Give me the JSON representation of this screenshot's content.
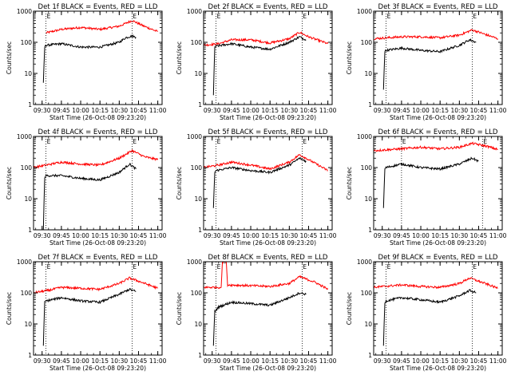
{
  "chart_data": [
    {
      "type": "line",
      "title": "Det 1f BLACK = Events, RED = LLD",
      "xlabel": "Start Time (26-Oct-08 09:23:20)",
      "ylabel": "Counts/sec",
      "x_ticks": [
        "09:30",
        "09:45",
        "10:00",
        "10:15",
        "10:30",
        "10:45",
        "11:00"
      ],
      "y_ticks": [
        "1",
        "10",
        "100",
        "1000"
      ],
      "y_scale": "log",
      "ylim": [
        1,
        1000
      ],
      "xlim": [
        "09:23:20",
        "11:03:20"
      ],
      "markers": [
        "E",
        "E"
      ],
      "vlines": [
        "09:33",
        "10:40"
      ],
      "series": [
        {
          "color": "#ff0000",
          "points": [
            [
              "09:33",
              200
            ],
            [
              "09:45",
              260
            ],
            [
              "10:00",
              300
            ],
            [
              "10:15",
              260
            ],
            [
              "10:30",
              330
            ],
            [
              "10:40",
              500
            ],
            [
              "10:50",
              320
            ],
            [
              "11:00",
              220
            ]
          ]
        },
        {
          "color": "#000000",
          "points": [
            [
              "09:31",
              5
            ],
            [
              "09:32",
              70
            ],
            [
              "09:33",
              80
            ],
            [
              "09:45",
              90
            ],
            [
              "10:00",
              70
            ],
            [
              "10:15",
              70
            ],
            [
              "10:30",
              100
            ],
            [
              "10:35",
              140
            ],
            [
              "10:40",
              160
            ],
            [
              "10:43",
              145
            ]
          ]
        }
      ]
    },
    {
      "type": "line",
      "title": "Det 2f BLACK = Events, RED = LLD",
      "xlabel": "Start Time (26-Oct-08 09:23:20)",
      "ylabel": "Counts/sec",
      "x_ticks": [
        "09:30",
        "09:45",
        "10:00",
        "10:15",
        "10:30",
        "10:45",
        "11:00"
      ],
      "y_ticks": [
        "1",
        "10",
        "100",
        "1000"
      ],
      "y_scale": "log",
      "ylim": [
        1,
        1000
      ],
      "xlim": [
        "09:23:20",
        "11:03:20"
      ],
      "markers": [
        "E",
        "E"
      ],
      "vlines": [
        "09:33",
        "10:40"
      ],
      "series": [
        {
          "color": "#ff0000",
          "points": [
            [
              "09:23",
              80
            ],
            [
              "09:35",
              90
            ],
            [
              "09:45",
              120
            ],
            [
              "10:00",
              120
            ],
            [
              "10:15",
              95
            ],
            [
              "10:30",
              130
            ],
            [
              "10:38",
              210
            ],
            [
              "10:45",
              150
            ],
            [
              "11:00",
              90
            ]
          ]
        },
        {
          "color": "#000000",
          "points": [
            [
              "09:31",
              2
            ],
            [
              "09:32",
              70
            ],
            [
              "09:33",
              75
            ],
            [
              "09:45",
              90
            ],
            [
              "10:00",
              70
            ],
            [
              "10:15",
              60
            ],
            [
              "10:30",
              100
            ],
            [
              "10:38",
              150
            ],
            [
              "10:43",
              120
            ]
          ]
        }
      ]
    },
    {
      "type": "line",
      "title": "Det 3f BLACK = Events, RED = LLD",
      "xlabel": "Start Time (26-Oct-08 09:23:20)",
      "ylabel": "Counts/sec",
      "x_ticks": [
        "09:30",
        "09:45",
        "10:00",
        "10:15",
        "10:30",
        "10:45",
        "11:00"
      ],
      "y_ticks": [
        "1",
        "10",
        "100",
        "1000"
      ],
      "y_scale": "log",
      "ylim": [
        1,
        1000
      ],
      "xlim": [
        "09:23:20",
        "11:03:20"
      ],
      "markers": [
        "E",
        "E"
      ],
      "vlines": [
        "09:33",
        "10:40"
      ],
      "series": [
        {
          "color": "#ff0000",
          "points": [
            [
              "09:23",
              130
            ],
            [
              "09:45",
              150
            ],
            [
              "10:00",
              150
            ],
            [
              "10:15",
              140
            ],
            [
              "10:30",
              170
            ],
            [
              "10:40",
              250
            ],
            [
              "10:50",
              180
            ],
            [
              "11:00",
              130
            ]
          ]
        },
        {
          "color": "#000000",
          "points": [
            [
              "09:31",
              3
            ],
            [
              "09:32",
              50
            ],
            [
              "09:33",
              55
            ],
            [
              "09:45",
              65
            ],
            [
              "10:00",
              55
            ],
            [
              "10:15",
              50
            ],
            [
              "10:30",
              80
            ],
            [
              "10:38",
              120
            ],
            [
              "10:43",
              100
            ]
          ]
        }
      ]
    },
    {
      "type": "line",
      "title": "Det 4f BLACK = Events, RED = LLD",
      "xlabel": "Start Time (26-Oct-08 09:23:20)",
      "ylabel": "Counts/sec",
      "x_ticks": [
        "09:30",
        "09:45",
        "10:00",
        "10:15",
        "10:30",
        "10:45",
        "11:00"
      ],
      "y_ticks": [
        "1",
        "10",
        "100",
        "1000"
      ],
      "y_scale": "log",
      "ylim": [
        1,
        1000
      ],
      "xlim": [
        "09:23:20",
        "11:03:20"
      ],
      "markers": [
        "E",
        "E"
      ],
      "vlines": [
        "09:33",
        "10:40"
      ],
      "series": [
        {
          "color": "#ff0000",
          "points": [
            [
              "09:23",
              100
            ],
            [
              "09:33",
              120
            ],
            [
              "09:45",
              150
            ],
            [
              "10:00",
              130
            ],
            [
              "10:15",
              120
            ],
            [
              "10:30",
              200
            ],
            [
              "10:40",
              350
            ],
            [
              "10:50",
              220
            ],
            [
              "11:00",
              180
            ]
          ]
        },
        {
          "color": "#000000",
          "points": [
            [
              "09:31",
              1
            ],
            [
              "09:32",
              50
            ],
            [
              "09:33",
              55
            ],
            [
              "09:45",
              55
            ],
            [
              "10:00",
              45
            ],
            [
              "10:15",
              40
            ],
            [
              "10:30",
              70
            ],
            [
              "10:38",
              130
            ],
            [
              "10:43",
              90
            ]
          ]
        }
      ]
    },
    {
      "type": "line",
      "title": "Det 5f BLACK = Events, RED = LLD",
      "xlabel": "Start Time (26-Oct-08 09:23:20)",
      "ylabel": "Counts/sec",
      "x_ticks": [
        "09:30",
        "09:45",
        "10:00",
        "10:15",
        "10:30",
        "10:45",
        "11:00"
      ],
      "y_ticks": [
        "1",
        "10",
        "100",
        "1000"
      ],
      "y_scale": "log",
      "ylim": [
        1,
        1000
      ],
      "xlim": [
        "09:23:20",
        "11:03:20"
      ],
      "markers": [
        "E",
        "E"
      ],
      "vlines": [
        "09:33",
        "10:40"
      ],
      "series": [
        {
          "color": "#ff0000",
          "points": [
            [
              "09:23",
              100
            ],
            [
              "09:35",
              120
            ],
            [
              "09:45",
              150
            ],
            [
              "10:00",
              120
            ],
            [
              "10:15",
              90
            ],
            [
              "10:30",
              150
            ],
            [
              "10:38",
              260
            ],
            [
              "10:45",
              180
            ],
            [
              "11:00",
              80
            ]
          ]
        },
        {
          "color": "#000000",
          "points": [
            [
              "09:31",
              5
            ],
            [
              "09:32",
              70
            ],
            [
              "09:33",
              80
            ],
            [
              "09:45",
              100
            ],
            [
              "10:00",
              80
            ],
            [
              "10:15",
              70
            ],
            [
              "10:30",
              120
            ],
            [
              "10:38",
              200
            ],
            [
              "10:43",
              160
            ]
          ]
        }
      ]
    },
    {
      "type": "line",
      "title": "Det 6f BLACK = Events, RED = LLD",
      "xlabel": "Start Time (26-Oct-08 09:23:20)",
      "ylabel": "Counts/sec",
      "x_ticks": [
        "09:30",
        "09:45",
        "10:00",
        "10:15",
        "10:30",
        "10:45",
        "11:00"
      ],
      "y_ticks": [
        "1",
        "10",
        "100",
        "1000"
      ],
      "y_scale": "log",
      "ylim": [
        1,
        1000
      ],
      "xlim": [
        "09:23:20",
        "11:03:20"
      ],
      "markers": [
        "E",
        "E"
      ],
      "vlines": [
        "09:45",
        "10:48"
      ],
      "series": [
        {
          "color": "#ff0000",
          "points": [
            [
              "09:23",
              350
            ],
            [
              "09:45",
              400
            ],
            [
              "10:00",
              450
            ],
            [
              "10:15",
              400
            ],
            [
              "10:30",
              450
            ],
            [
              "10:40",
              600
            ],
            [
              "10:50",
              500
            ],
            [
              "11:00",
              380
            ]
          ]
        },
        {
          "color": "#000000",
          "points": [
            [
              "09:31",
              5
            ],
            [
              "09:32",
              90
            ],
            [
              "09:33",
              100
            ],
            [
              "09:45",
              130
            ],
            [
              "10:00",
              100
            ],
            [
              "10:15",
              90
            ],
            [
              "10:30",
              130
            ],
            [
              "10:40",
              200
            ],
            [
              "10:45",
              160
            ]
          ]
        }
      ]
    },
    {
      "type": "line",
      "title": "Det 7f BLACK = Events, RED = LLD",
      "xlabel": "Start Time (26-Oct-08 09:23:20)",
      "ylabel": "Counts/sec",
      "x_ticks": [
        "09:30",
        "09:45",
        "10:00",
        "10:15",
        "10:30",
        "10:45",
        "11:00"
      ],
      "y_ticks": [
        "1",
        "10",
        "100",
        "1000"
      ],
      "y_scale": "log",
      "ylim": [
        1,
        1000
      ],
      "xlim": [
        "09:23:20",
        "11:03:20"
      ],
      "markers": [
        "E",
        "E"
      ],
      "vlines": [
        "09:33",
        "10:40"
      ],
      "series": [
        {
          "color": "#ff0000",
          "points": [
            [
              "09:23",
              100
            ],
            [
              "09:35",
              120
            ],
            [
              "09:45",
              150
            ],
            [
              "10:00",
              140
            ],
            [
              "10:15",
              130
            ],
            [
              "10:30",
              200
            ],
            [
              "10:38",
              300
            ],
            [
              "10:50",
              200
            ],
            [
              "11:00",
              140
            ]
          ]
        },
        {
          "color": "#000000",
          "points": [
            [
              "09:31",
              2
            ],
            [
              "09:32",
              50
            ],
            [
              "09:33",
              55
            ],
            [
              "09:45",
              70
            ],
            [
              "10:00",
              55
            ],
            [
              "10:15",
              50
            ],
            [
              "10:30",
              90
            ],
            [
              "10:38",
              130
            ],
            [
              "10:43",
              110
            ]
          ]
        }
      ]
    },
    {
      "type": "line",
      "title": "Det 8f BLACK = Events, RED = LLD",
      "xlabel": "Start Time (26-Oct-08 09:23:20)",
      "ylabel": "Counts/sec",
      "x_ticks": [
        "09:30",
        "09:45",
        "10:00",
        "10:15",
        "10:30",
        "10:45",
        "11:00"
      ],
      "y_ticks": [
        "1",
        "10",
        "100",
        "1000"
      ],
      "y_scale": "log",
      "ylim": [
        1,
        1000
      ],
      "xlim": [
        "09:23:20",
        "11:03:20"
      ],
      "markers": [
        "E",
        "E"
      ],
      "vlines": [
        "09:33",
        "10:40"
      ],
      "series": [
        {
          "color": "#ff0000",
          "points": [
            [
              "09:23",
              150
            ],
            [
              "09:37",
              150
            ],
            [
              "09:38",
              1000
            ],
            [
              "09:41",
              1000
            ],
            [
              "09:42",
              180
            ],
            [
              "10:00",
              170
            ],
            [
              "10:15",
              160
            ],
            [
              "10:30",
              200
            ],
            [
              "10:38",
              330
            ],
            [
              "10:50",
              220
            ],
            [
              "11:00",
              130
            ]
          ]
        },
        {
          "color": "#000000",
          "points": [
            [
              "09:31",
              2
            ],
            [
              "09:32",
              25
            ],
            [
              "09:35",
              35
            ],
            [
              "09:45",
              50
            ],
            [
              "10:00",
              45
            ],
            [
              "10:15",
              40
            ],
            [
              "10:30",
              70
            ],
            [
              "10:38",
              100
            ],
            [
              "10:43",
              90
            ]
          ]
        }
      ]
    },
    {
      "type": "line",
      "title": "Det 9f BLACK = Events, RED = LLD",
      "xlabel": "Start Time (26-Oct-08 09:23:20)",
      "ylabel": "Counts/sec",
      "x_ticks": [
        "09:30",
        "09:45",
        "10:00",
        "10:15",
        "10:30",
        "10:45",
        "11:00"
      ],
      "y_ticks": [
        "1",
        "10",
        "100",
        "1000"
      ],
      "y_scale": "log",
      "ylim": [
        1,
        1000
      ],
      "xlim": [
        "09:23:20",
        "11:03:20"
      ],
      "markers": [
        "E",
        "E"
      ],
      "vlines": [
        "09:33",
        "10:40"
      ],
      "series": [
        {
          "color": "#ff0000",
          "points": [
            [
              "09:23",
              150
            ],
            [
              "09:45",
              180
            ],
            [
              "10:00",
              160
            ],
            [
              "10:15",
              150
            ],
            [
              "10:30",
              200
            ],
            [
              "10:38",
              300
            ],
            [
              "10:50",
              200
            ],
            [
              "11:00",
              140
            ]
          ]
        },
        {
          "color": "#000000",
          "points": [
            [
              "09:31",
              2
            ],
            [
              "09:32",
              50
            ],
            [
              "09:33",
              55
            ],
            [
              "09:45",
              70
            ],
            [
              "10:00",
              60
            ],
            [
              "10:15",
              50
            ],
            [
              "10:30",
              80
            ],
            [
              "10:38",
              120
            ],
            [
              "10:43",
              100
            ]
          ]
        }
      ]
    }
  ]
}
